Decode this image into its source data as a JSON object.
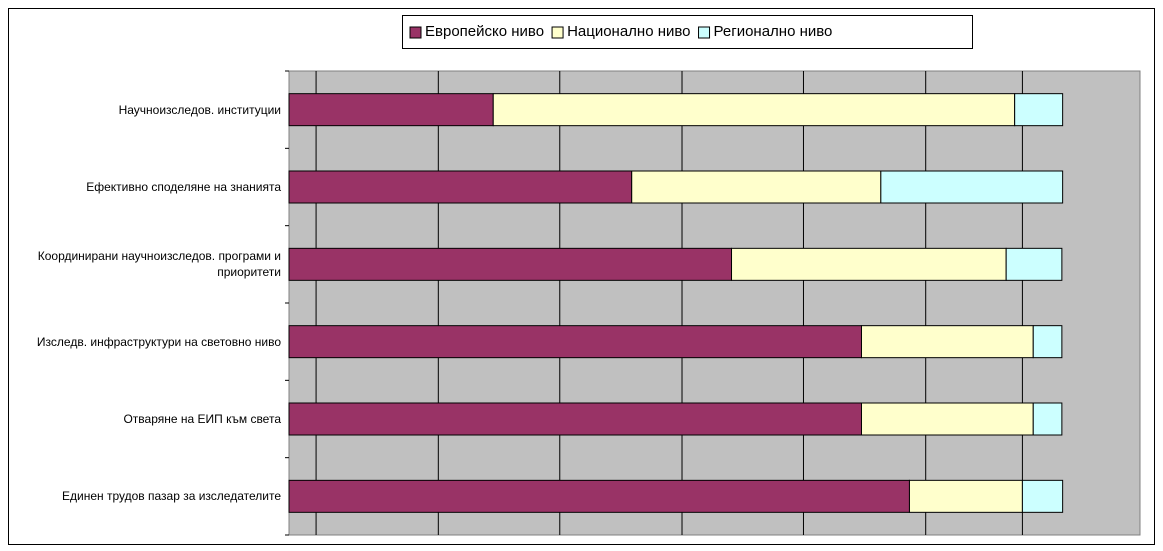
{
  "chart_data": {
    "type": "stacked-barh",
    "categories": [
      "Научноизследов. институции",
      "Ефективно споделяне на знанията",
      "Координирани научноизследов. програми и приоритети",
      "Изследв. инфраструктури на световно ниво",
      "Отваряне на ЕИП към света",
      "Единен трудов пазар за изследателите"
    ],
    "series": [
      {
        "name": "Европейско ниво",
        "color": "#993366",
        "values": [
          26.4,
          44.3,
          57.2,
          74.0,
          74.0,
          80.2
        ]
      },
      {
        "name": "Национално ниво",
        "color": "#ffffcc",
        "values": [
          67.4,
          32.2,
          35.5,
          22.2,
          22.2,
          14.6
        ]
      },
      {
        "name": "Регионално ниво",
        "color": "#ccffff",
        "values": [
          6.2,
          23.5,
          7.2,
          3.7,
          3.7,
          5.2
        ]
      }
    ],
    "xlim": [
      0,
      110
    ],
    "xticks": [
      3.5,
      19.3,
      35.0,
      50.8,
      66.5,
      82.3,
      94.8
    ],
    "grid": true,
    "legend": "top"
  }
}
